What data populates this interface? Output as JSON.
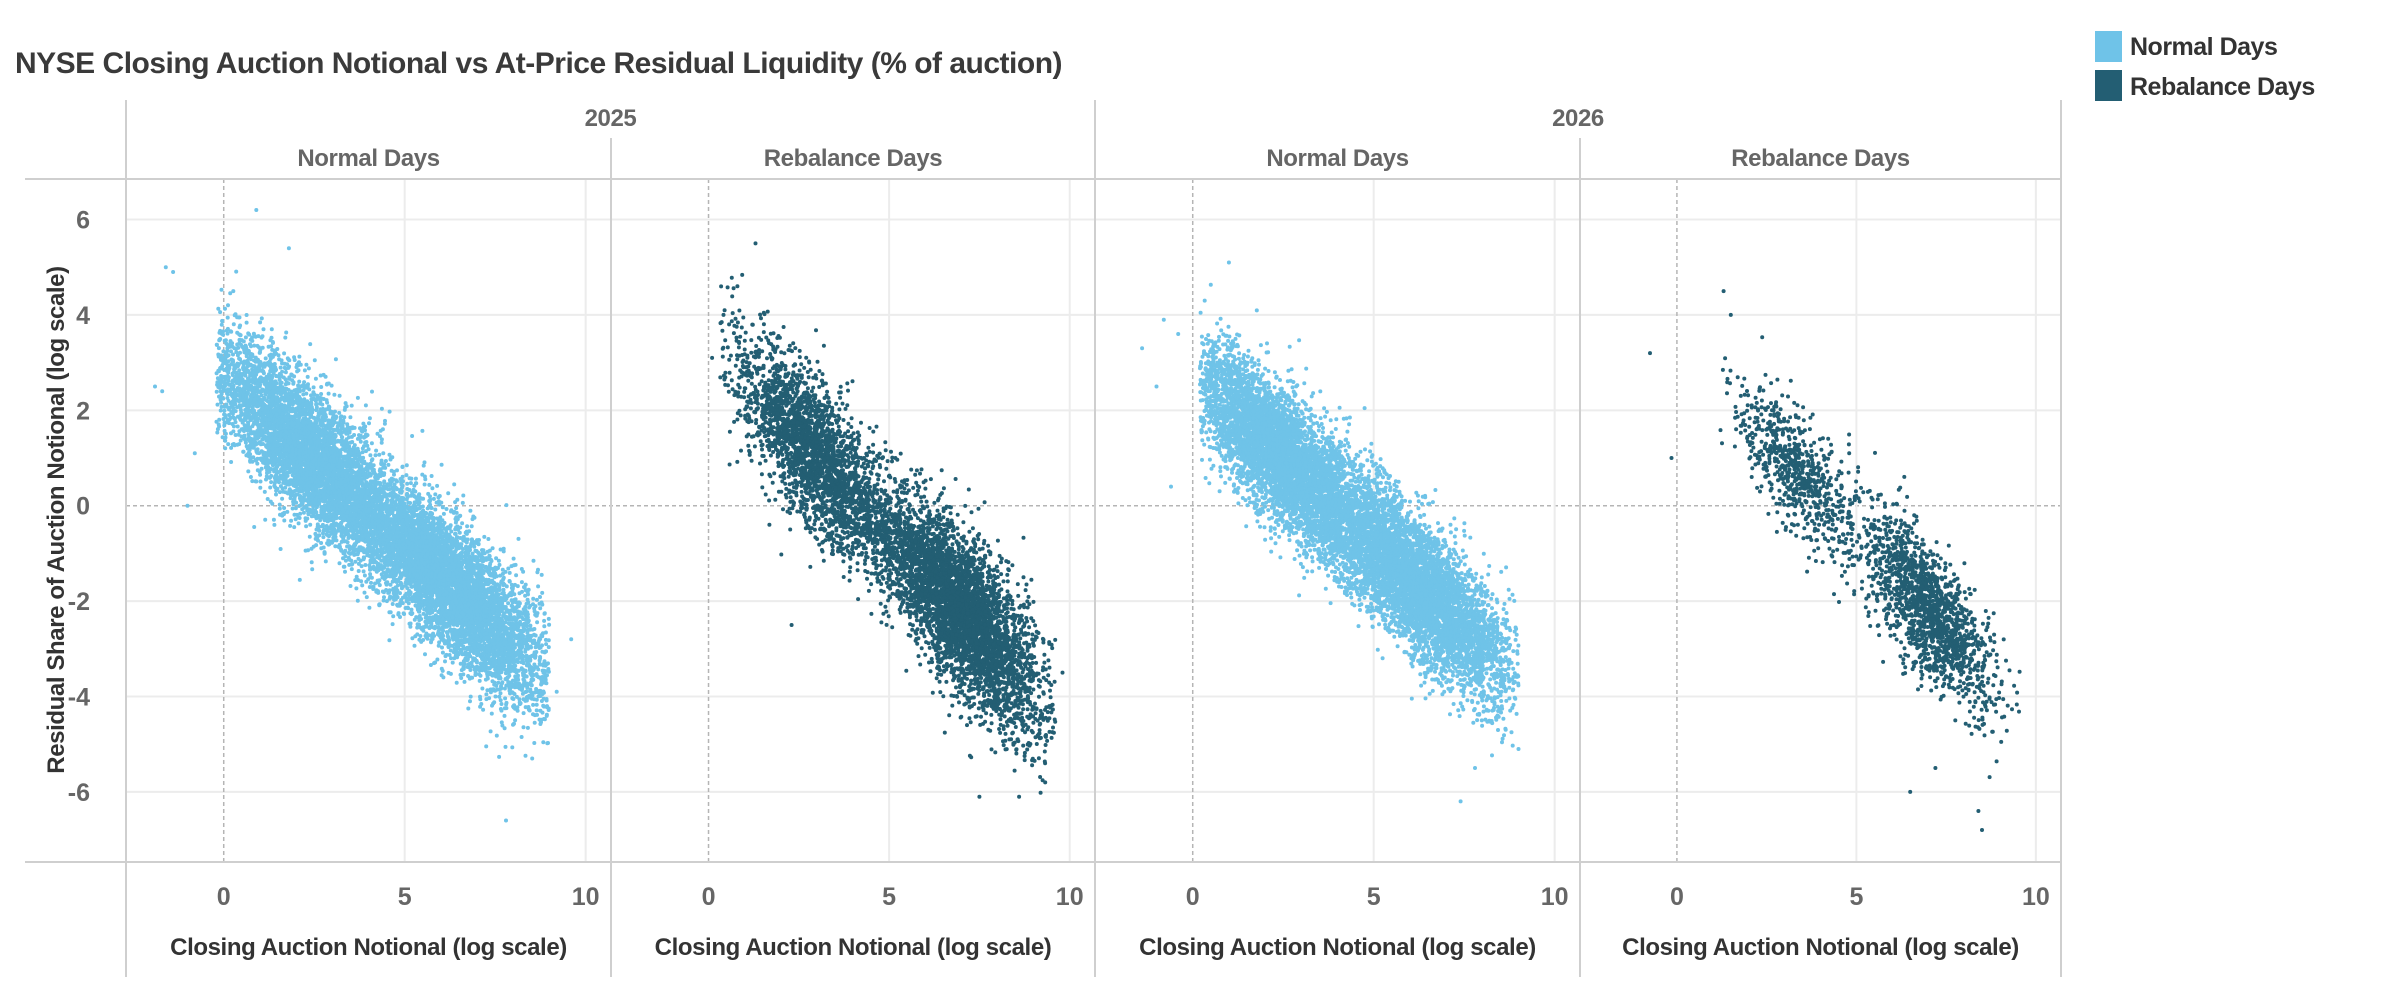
{
  "chart_data": {
    "type": "scatter",
    "title": "NYSE Closing Auction Notional vs At-Price Residual Liquidity (% of auction)",
    "xlabel": "Closing Auction Notional (log scale)",
    "ylabel": "Residual Share of Auction Notional (log scale)",
    "xlim": [
      -2.7,
      10.7
    ],
    "ylim": [
      -7.47,
      6.85
    ],
    "x_ticks": [
      "0",
      "5",
      "10"
    ],
    "y_ticks": [
      "6",
      "4",
      "2",
      "0",
      "-2",
      "-4",
      "-6"
    ],
    "grid": true,
    "reference_lines": {
      "x": 0,
      "y": 0,
      "style": "dashed"
    },
    "legend": {
      "placement": "top-right",
      "items": [
        {
          "label": "Normal Days",
          "color": "#6fc3e8"
        },
        {
          "label": "Rebalance Days",
          "color": "#235e73"
        }
      ]
    },
    "column_groups": [
      "2025",
      "2026"
    ],
    "panels": [
      {
        "year": "2025",
        "segment": "Normal Days",
        "color": "#6fc3e8",
        "clouds": [
          {
            "x_mean": 2.4,
            "x_sd": 1.4,
            "x_range": [
              -0.2,
              9.0
            ],
            "trend_intercept": 2.7,
            "trend_slope": -0.7,
            "y_sd": 0.72
          },
          {
            "x_mean": 6.4,
            "x_sd": 1.3,
            "x_range": [
              -0.2,
              9.0
            ],
            "trend_intercept": 2.7,
            "trend_slope": -0.7,
            "y_sd": 0.72
          }
        ],
        "outliers": [
          [
            -1.6,
            5.0
          ],
          [
            -1.4,
            4.9
          ],
          [
            -1.9,
            2.5
          ],
          [
            -1.7,
            2.4
          ],
          [
            -0.8,
            1.1
          ],
          [
            -1.0,
            0.0
          ],
          [
            0.9,
            6.2
          ],
          [
            1.8,
            5.4
          ],
          [
            7.8,
            -6.6
          ],
          [
            9.6,
            -2.8
          ],
          [
            9.2,
            -3.9
          ]
        ]
      },
      {
        "year": "2025",
        "segment": "Rebalance Days",
        "color": "#235e73",
        "clouds": [
          {
            "x_mean": 3.0,
            "x_sd": 1.1,
            "x_range": [
              0.3,
              9.6
            ],
            "trend_intercept": 3.4,
            "trend_slope": -0.8,
            "y_sd": 0.75
          },
          {
            "x_mean": 7.0,
            "x_sd": 1.1,
            "x_range": [
              0.3,
              9.6
            ],
            "trend_intercept": 3.4,
            "trend_slope": -0.8,
            "y_sd": 0.8
          }
        ],
        "outliers": [
          [
            1.3,
            5.5
          ],
          [
            0.8,
            4.6
          ],
          [
            0.1,
            3.1
          ],
          [
            7.5,
            -6.1
          ],
          [
            8.6,
            -6.1
          ],
          [
            9.8,
            -3.5
          ],
          [
            2.3,
            -2.5
          ]
        ]
      },
      {
        "year": "2026",
        "segment": "Normal Days",
        "color": "#6fc3e8",
        "clouds": [
          {
            "x_mean": 2.5,
            "x_sd": 1.3,
            "x_range": [
              0.2,
              9.0
            ],
            "trend_intercept": 2.8,
            "trend_slope": -0.72,
            "y_sd": 0.7
          },
          {
            "x_mean": 6.3,
            "x_sd": 1.3,
            "x_range": [
              0.2,
              9.0
            ],
            "trend_intercept": 2.8,
            "trend_slope": -0.72,
            "y_sd": 0.7
          }
        ],
        "outliers": [
          [
            -1.4,
            3.3
          ],
          [
            -1.0,
            2.5
          ],
          [
            -0.8,
            3.9
          ],
          [
            -0.4,
            3.6
          ],
          [
            -0.6,
            0.4
          ],
          [
            1.0,
            5.1
          ],
          [
            7.4,
            -6.2
          ],
          [
            9.0,
            -5.1
          ],
          [
            7.8,
            -5.5
          ]
        ]
      },
      {
        "year": "2026",
        "segment": "Rebalance Days",
        "color": "#235e73",
        "clouds": [
          {
            "x_mean": 3.4,
            "x_sd": 0.9,
            "x_range": [
              1.2,
              9.6
            ],
            "trend_intercept": 3.4,
            "trend_slope": -0.8,
            "y_sd": 0.6
          },
          {
            "x_mean": 7.0,
            "x_sd": 0.9,
            "x_range": [
              1.2,
              9.6
            ],
            "trend_intercept": 3.4,
            "trend_slope": -0.8,
            "y_sd": 0.7
          }
        ],
        "outliers": [
          [
            -0.75,
            3.2
          ],
          [
            -0.15,
            1.0
          ],
          [
            1.3,
            4.5
          ],
          [
            1.5,
            4.0
          ],
          [
            8.5,
            -6.8
          ],
          [
            8.4,
            -6.4
          ],
          [
            6.5,
            -6.0
          ],
          [
            7.2,
            -5.5
          ],
          [
            4.8,
            1.1
          ]
        ]
      }
    ]
  }
}
